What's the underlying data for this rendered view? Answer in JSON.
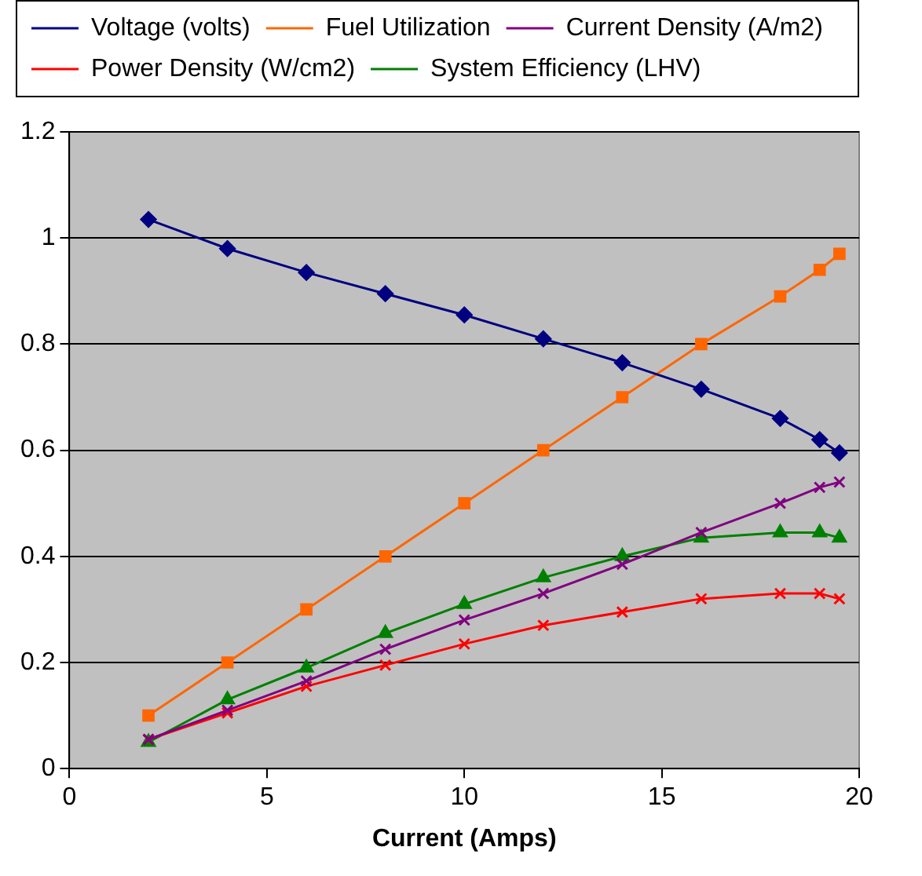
{
  "chart_data": {
    "type": "line",
    "xlabel": "Current (Amps)",
    "x": [
      2,
      4,
      6,
      8,
      10,
      12,
      14,
      16,
      18,
      19,
      19.5
    ],
    "xlim": [
      0,
      20
    ],
    "xticks": [
      0,
      5,
      10,
      15,
      20
    ],
    "ylim": [
      0,
      1.2
    ],
    "yticks": [
      0,
      0.2,
      0.4,
      0.6,
      0.8,
      1,
      1.2
    ],
    "grid": "y",
    "legend": "top",
    "line_style": "solid",
    "series": [
      {
        "name": "Voltage (volts)",
        "color": "#000080",
        "marker": "diamond",
        "values": [
          1.035,
          0.98,
          0.935,
          0.895,
          0.855,
          0.81,
          0.765,
          0.715,
          0.66,
          0.62,
          0.595
        ]
      },
      {
        "name": "Fuel Utilization",
        "color": "#ff6600",
        "marker": "square",
        "values": [
          0.1,
          0.2,
          0.3,
          0.4,
          0.5,
          0.6,
          0.7,
          0.8,
          0.89,
          0.94,
          0.97
        ]
      },
      {
        "name": "Current Density (A/m2)",
        "color": "#800080",
        "marker": "cross",
        "values": [
          0.055,
          0.11,
          0.165,
          0.225,
          0.28,
          0.33,
          0.385,
          0.445,
          0.5,
          0.53,
          0.54
        ]
      },
      {
        "name": "Power Density (W/cm2)",
        "color": "#ff0000",
        "marker": "cross",
        "values": [
          0.055,
          0.105,
          0.155,
          0.195,
          0.235,
          0.27,
          0.295,
          0.32,
          0.33,
          0.33,
          0.32
        ]
      },
      {
        "name": "System Efficiency (LHV)",
        "color": "#008000",
        "marker": "triangle",
        "values": [
          0.05,
          0.13,
          0.19,
          0.255,
          0.31,
          0.36,
          0.4,
          0.435,
          0.445,
          0.445,
          0.435
        ]
      }
    ]
  }
}
